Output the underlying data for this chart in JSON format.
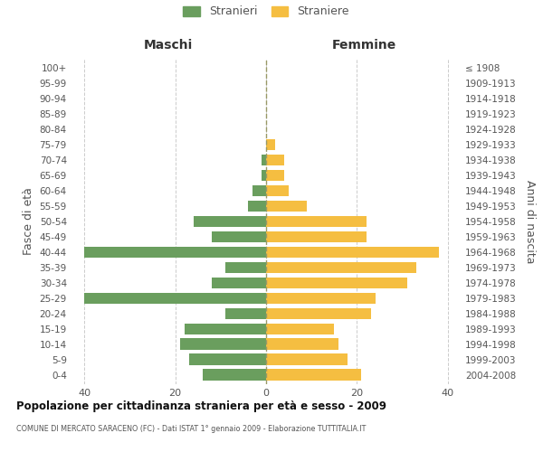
{
  "age_groups": [
    "0-4",
    "5-9",
    "10-14",
    "15-19",
    "20-24",
    "25-29",
    "30-34",
    "35-39",
    "40-44",
    "45-49",
    "50-54",
    "55-59",
    "60-64",
    "65-69",
    "70-74",
    "75-79",
    "80-84",
    "85-89",
    "90-94",
    "95-99",
    "100+"
  ],
  "birth_years": [
    "2004-2008",
    "1999-2003",
    "1994-1998",
    "1989-1993",
    "1984-1988",
    "1979-1983",
    "1974-1978",
    "1969-1973",
    "1964-1968",
    "1959-1963",
    "1954-1958",
    "1949-1953",
    "1944-1948",
    "1939-1943",
    "1934-1938",
    "1929-1933",
    "1924-1928",
    "1919-1923",
    "1914-1918",
    "1909-1913",
    "≤ 1908"
  ],
  "maschi": [
    14,
    17,
    19,
    18,
    9,
    40,
    12,
    9,
    40,
    12,
    16,
    4,
    3,
    1,
    1,
    0,
    0,
    0,
    0,
    0,
    0
  ],
  "femmine": [
    21,
    18,
    16,
    15,
    23,
    24,
    31,
    33,
    38,
    22,
    22,
    9,
    5,
    4,
    4,
    2,
    0,
    0,
    0,
    0,
    0
  ],
  "color_maschi": "#6a9e5e",
  "color_femmine": "#f5be41",
  "title": "Popolazione per cittadinanza straniera per età e sesso - 2009",
  "subtitle": "COMUNE DI MERCATO SARACENO (FC) - Dati ISTAT 1° gennaio 2009 - Elaborazione TUTTITALIA.IT",
  "ylabel_left": "Fasce di età",
  "ylabel_right": "Anni di nascita",
  "label_maschi": "Maschi",
  "label_femmine": "Femmine",
  "legend_maschi": "Stranieri",
  "legend_femmine": "Straniere",
  "xlim": 43,
  "bg_color": "#ffffff",
  "grid_color": "#cccccc",
  "text_color": "#555555",
  "axvline_color": "#999966"
}
